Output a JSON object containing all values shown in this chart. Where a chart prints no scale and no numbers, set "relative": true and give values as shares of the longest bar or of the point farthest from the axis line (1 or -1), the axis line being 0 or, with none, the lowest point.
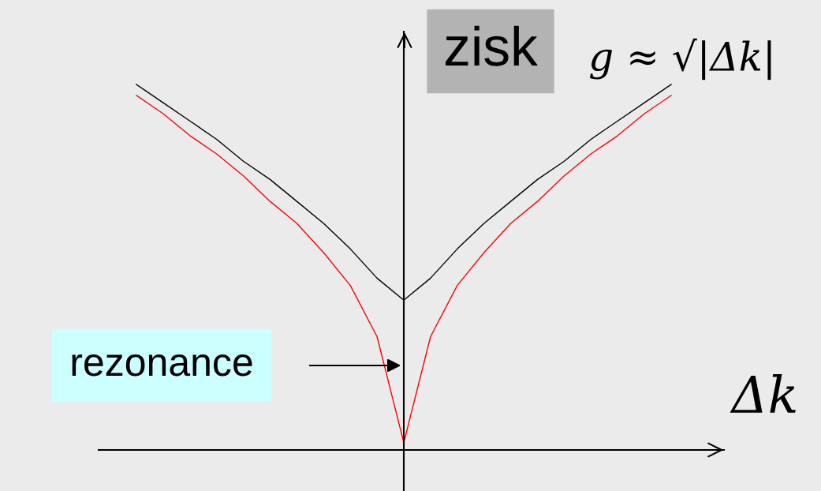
{
  "chart_data": {
    "type": "line",
    "relative": true,
    "xlabel": "Δk",
    "ylabel": "zisk",
    "annotations": [
      "g ≈ √|Δk|",
      "rezonance"
    ],
    "categories": [
      null,
      null,
      null,
      null,
      null,
      null,
      null,
      null,
      null,
      null,
      null,
      null,
      null,
      null,
      null,
      null,
      null,
      null,
      null,
      null,
      null
    ],
    "series": [
      {
        "color": "#000000",
        "values": [
          1,
          0.95,
          0.9,
          0.85,
          0.79,
          0.74,
          0.68,
          0.62,
          0.55,
          0.47,
          0.41,
          0.47,
          0.55,
          0.62,
          0.68,
          0.74,
          0.79,
          0.85,
          0.9,
          0.95,
          1
        ]
      },
      {
        "color": "#ff0000",
        "values": [
          0.97,
          0.92,
          0.86,
          0.81,
          0.75,
          0.68,
          0.62,
          0.54,
          0.45,
          0.31,
          0.02,
          0.31,
          0.45,
          0.54,
          0.62,
          0.68,
          0.75,
          0.81,
          0.86,
          0.92,
          0.97
        ]
      }
    ]
  }
}
